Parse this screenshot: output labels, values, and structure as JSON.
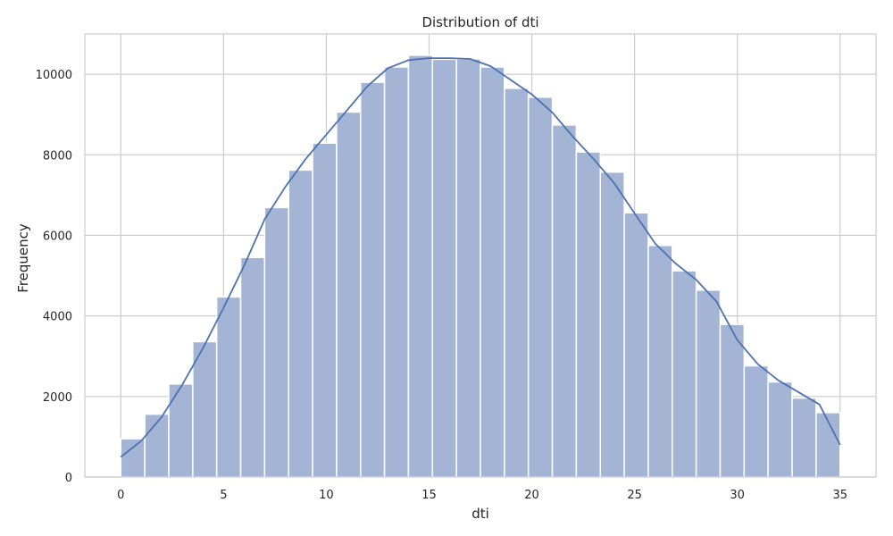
{
  "chart_data": {
    "type": "bar",
    "title": "Distribution of dti",
    "xlabel": "dti",
    "ylabel": "Frequency",
    "xlim": [
      -1.75,
      36.75
    ],
    "ylim": [
      0,
      11000
    ],
    "x_ticks": [
      0,
      5,
      10,
      15,
      20,
      25,
      30,
      35
    ],
    "y_ticks": [
      0,
      2000,
      4000,
      6000,
      8000,
      10000
    ],
    "grid": true,
    "bin_width": 1.1667,
    "bin_start": 0,
    "bins": [
      {
        "x0": 0.0,
        "x1": 1.1667,
        "count": 950
      },
      {
        "x0": 1.1667,
        "x1": 2.3333,
        "count": 1560
      },
      {
        "x0": 2.3333,
        "x1": 3.5,
        "count": 2310
      },
      {
        "x0": 3.5,
        "x1": 4.6667,
        "count": 3360
      },
      {
        "x0": 4.6667,
        "x1": 5.8333,
        "count": 4470
      },
      {
        "x0": 5.8333,
        "x1": 7.0,
        "count": 5450
      },
      {
        "x0": 7.0,
        "x1": 8.1667,
        "count": 6690
      },
      {
        "x0": 8.1667,
        "x1": 9.3333,
        "count": 7620
      },
      {
        "x0": 9.3333,
        "x1": 10.5,
        "count": 8290
      },
      {
        "x0": 10.5,
        "x1": 11.6667,
        "count": 9060
      },
      {
        "x0": 11.6667,
        "x1": 12.8333,
        "count": 9800
      },
      {
        "x0": 12.8333,
        "x1": 14.0,
        "count": 10180
      },
      {
        "x0": 14.0,
        "x1": 15.1667,
        "count": 10470
      },
      {
        "x0": 15.1667,
        "x1": 16.3333,
        "count": 10370
      },
      {
        "x0": 16.3333,
        "x1": 17.5,
        "count": 10380
      },
      {
        "x0": 17.5,
        "x1": 18.6667,
        "count": 10180
      },
      {
        "x0": 18.6667,
        "x1": 19.8333,
        "count": 9650
      },
      {
        "x0": 19.8333,
        "x1": 21.0,
        "count": 9430
      },
      {
        "x0": 21.0,
        "x1": 22.1667,
        "count": 8740
      },
      {
        "x0": 22.1667,
        "x1": 23.3333,
        "count": 8070
      },
      {
        "x0": 23.3333,
        "x1": 24.5,
        "count": 7570
      },
      {
        "x0": 24.5,
        "x1": 25.6667,
        "count": 6560
      },
      {
        "x0": 25.6667,
        "x1": 26.8333,
        "count": 5750
      },
      {
        "x0": 26.8333,
        "x1": 28.0,
        "count": 5120
      },
      {
        "x0": 28.0,
        "x1": 29.1667,
        "count": 4640
      },
      {
        "x0": 29.1667,
        "x1": 30.3333,
        "count": 3790
      },
      {
        "x0": 30.3333,
        "x1": 31.5,
        "count": 2760
      },
      {
        "x0": 31.5,
        "x1": 32.6667,
        "count": 2360
      },
      {
        "x0": 32.6667,
        "x1": 33.8333,
        "count": 1960
      },
      {
        "x0": 33.8333,
        "x1": 35.0,
        "count": 1600
      }
    ],
    "kde_curve": [
      [
        0,
        500
      ],
      [
        1,
        900
      ],
      [
        2,
        1500
      ],
      [
        3,
        2300
      ],
      [
        4,
        3200
      ],
      [
        5,
        4200
      ],
      [
        6,
        5250
      ],
      [
        7,
        6400
      ],
      [
        8,
        7200
      ],
      [
        9,
        7900
      ],
      [
        10,
        8500
      ],
      [
        11,
        9100
      ],
      [
        12,
        9700
      ],
      [
        13,
        10150
      ],
      [
        14,
        10350
      ],
      [
        15,
        10400
      ],
      [
        16,
        10400
      ],
      [
        17,
        10380
      ],
      [
        18,
        10200
      ],
      [
        19,
        9850
      ],
      [
        20,
        9500
      ],
      [
        21,
        9050
      ],
      [
        22,
        8450
      ],
      [
        23,
        7900
      ],
      [
        24,
        7300
      ],
      [
        25,
        6550
      ],
      [
        26,
        5800
      ],
      [
        27,
        5300
      ],
      [
        28,
        4900
      ],
      [
        29,
        4350
      ],
      [
        30,
        3400
      ],
      [
        31,
        2800
      ],
      [
        32,
        2400
      ],
      [
        33,
        2100
      ],
      [
        34,
        1800
      ],
      [
        35,
        800
      ]
    ],
    "colors": {
      "bar_fill": "#a3b4d5",
      "bar_edge": "#ffffff",
      "kde_line": "#4c72b0",
      "grid": "#cccccc",
      "frame": "#cccccc",
      "text": "#262626"
    }
  }
}
